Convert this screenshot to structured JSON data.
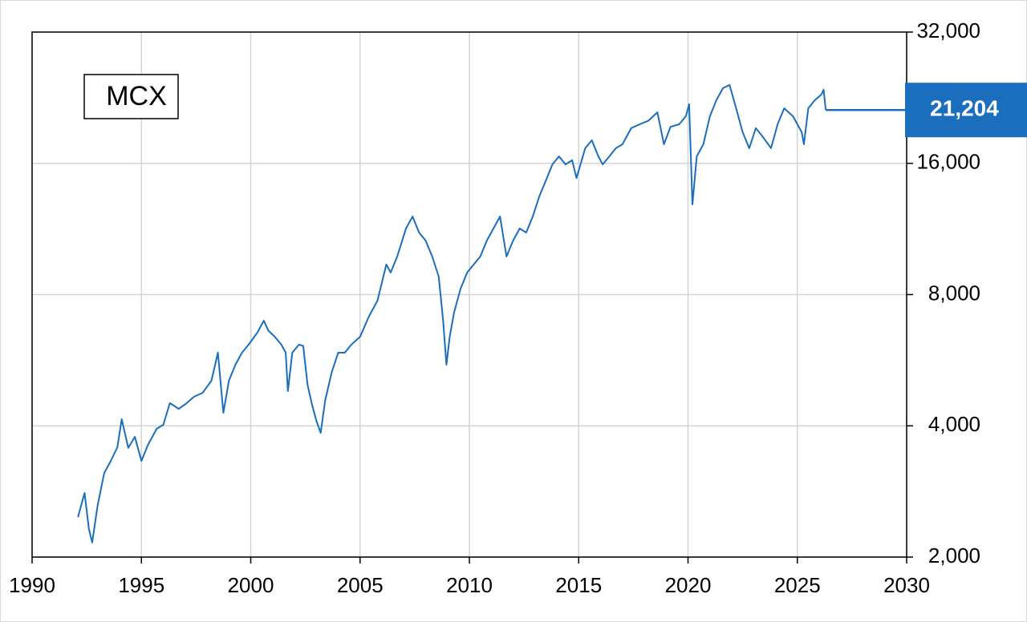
{
  "chart_data": {
    "type": "line",
    "x": [
      1992.1,
      1992.4,
      1992.6,
      1992.75,
      1993.0,
      1993.3,
      1993.6,
      1993.9,
      1994.1,
      1994.4,
      1994.7,
      1995.0,
      1995.3,
      1995.7,
      1996.0,
      1996.3,
      1996.7,
      1997.0,
      1997.4,
      1997.8,
      1998.2,
      1998.5,
      1998.75,
      1999.0,
      1999.3,
      1999.6,
      1999.9,
      2000.3,
      2000.6,
      2000.8,
      2001.1,
      2001.4,
      2001.6,
      2001.7,
      2001.9,
      2002.2,
      2002.4,
      2002.6,
      2002.8,
      2003.0,
      2003.2,
      2003.4,
      2003.7,
      2004.0,
      2004.3,
      2004.6,
      2005.0,
      2005.4,
      2005.8,
      2006.2,
      2006.4,
      2006.7,
      2007.1,
      2007.4,
      2007.7,
      2008.0,
      2008.3,
      2008.6,
      2008.8,
      2008.95,
      2009.1,
      2009.3,
      2009.6,
      2009.9,
      2010.2,
      2010.5,
      2010.8,
      2011.1,
      2011.4,
      2011.7,
      2012.0,
      2012.3,
      2012.6,
      2012.9,
      2013.2,
      2013.5,
      2013.8,
      2014.1,
      2014.4,
      2014.7,
      2014.9,
      2015.3,
      2015.6,
      2015.9,
      2016.1,
      2016.4,
      2016.7,
      2017.0,
      2017.4,
      2017.8,
      2018.2,
      2018.6,
      2018.9,
      2019.2,
      2019.6,
      2019.9,
      2020.05,
      2020.2,
      2020.4,
      2020.7,
      2021.0,
      2021.3,
      2021.6,
      2021.9,
      2022.2,
      2022.5,
      2022.8,
      2023.1,
      2023.4,
      2023.8,
      2024.1,
      2024.4,
      2024.8,
      2025.2,
      2025.3,
      2025.5,
      2025.8,
      2026.1,
      2026.2,
      2026.3
    ],
    "series": [
      {
        "name": "MCX",
        "color": "#1a6ebd",
        "values": [
          2470,
          2806,
          2320,
          2160,
          2634,
          3118,
          3324,
          3572,
          4142,
          3560,
          3774,
          3324,
          3618,
          3938,
          4022,
          4510,
          4376,
          4480,
          4664,
          4762,
          5076,
          5886,
          4284,
          5076,
          5524,
          5886,
          6140,
          6540,
          6972,
          6620,
          6404,
          6140,
          5886,
          4804,
          5886,
          6140,
          6100,
          4970,
          4480,
          4108,
          3854,
          4566,
          5296,
          5886,
          5886,
          6140,
          6404,
          7120,
          7750,
          9380,
          8988,
          9780,
          11340,
          12080,
          11100,
          10640,
          9780,
          8800,
          6972,
          5524,
          6404,
          7274,
          8260,
          8988,
          9380,
          9780,
          10640,
          11340,
          12080,
          9780,
          10640,
          11340,
          11100,
          12080,
          13440,
          14620,
          15910,
          16600,
          15910,
          16260,
          14800,
          17330,
          18070,
          16600,
          15910,
          16600,
          17330,
          17690,
          19260,
          19670,
          20050,
          20950,
          17690,
          19400,
          19670,
          20520,
          21860,
          12880,
          16600,
          17690,
          20520,
          22330,
          23800,
          24200,
          21400,
          18860,
          17330,
          19260,
          18460,
          17330,
          19670,
          21400,
          20520,
          18860,
          17690,
          21400,
          22330,
          23000,
          23600,
          21204
        ]
      }
    ],
    "last_value": {
      "value": 21204,
      "label": "21,204"
    },
    "xlim": [
      1990,
      2030
    ],
    "xticks": [
      1990,
      1995,
      2000,
      2005,
      2010,
      2015,
      2020,
      2025,
      2030
    ],
    "ylim": [
      2000,
      32000
    ],
    "yticks": [
      {
        "value": 2000,
        "label": "2,000"
      },
      {
        "value": 4000,
        "label": "4,000"
      },
      {
        "value": 8000,
        "label": "8,000"
      },
      {
        "value": 16000,
        "label": "16,000"
      },
      {
        "value": 32000,
        "label": "32,000"
      }
    ],
    "log_y": true,
    "grid": true
  }
}
